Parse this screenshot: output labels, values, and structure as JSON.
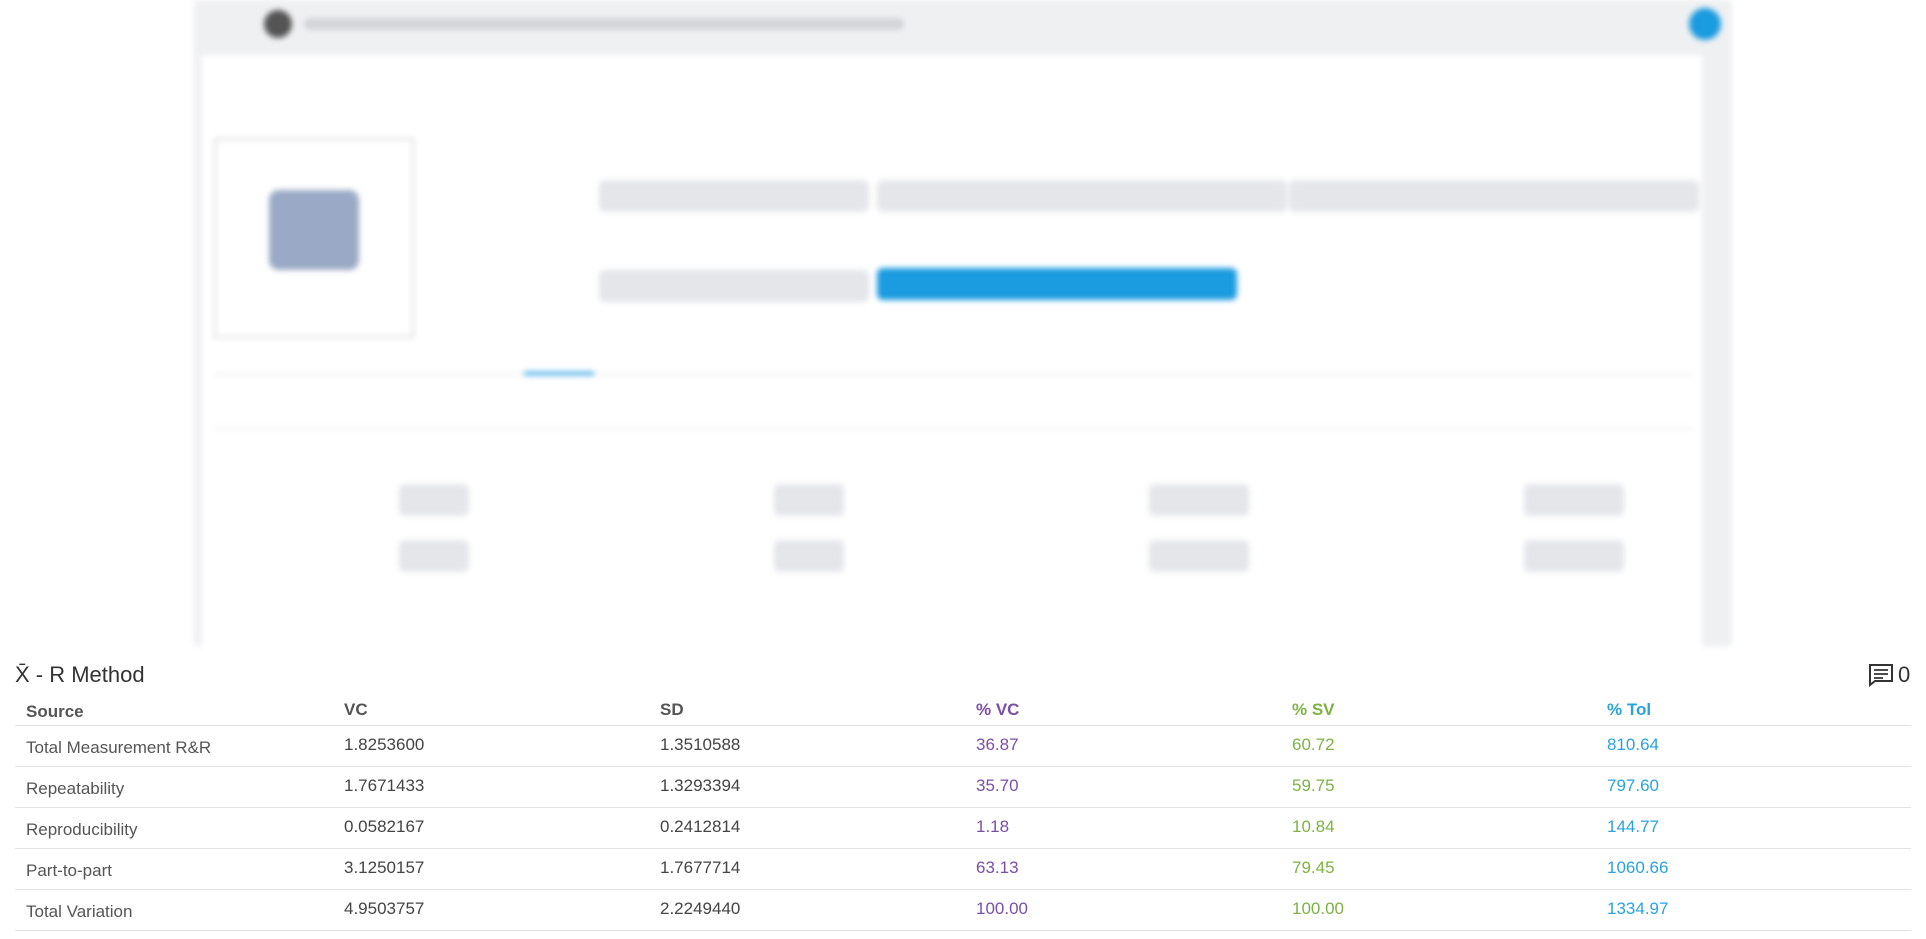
{
  "section": {
    "title": "X̄ - R Method",
    "comment_count": "0"
  },
  "table": {
    "columns": [
      "Source",
      "VC",
      "SD",
      "% VC",
      "% SV",
      "% Tol"
    ],
    "rows": [
      [
        "Total Measurement R&R",
        "1.8253600",
        "1.3510588",
        "36.87",
        "60.72",
        "810.64"
      ],
      [
        "Repeatability",
        "1.7671433",
        "1.3293394",
        "35.70",
        "59.75",
        "797.60"
      ],
      [
        "Reproducibility",
        "0.0582167",
        "0.2412814",
        "1.18",
        "10.84",
        "144.77"
      ],
      [
        "Part-to-part",
        "3.1250157",
        "1.7677714",
        "63.13",
        "79.45",
        "1060.66"
      ],
      [
        "Total Variation",
        "4.9503757",
        "2.2249440",
        "100.00",
        "100.00",
        "1334.97"
      ]
    ]
  }
}
